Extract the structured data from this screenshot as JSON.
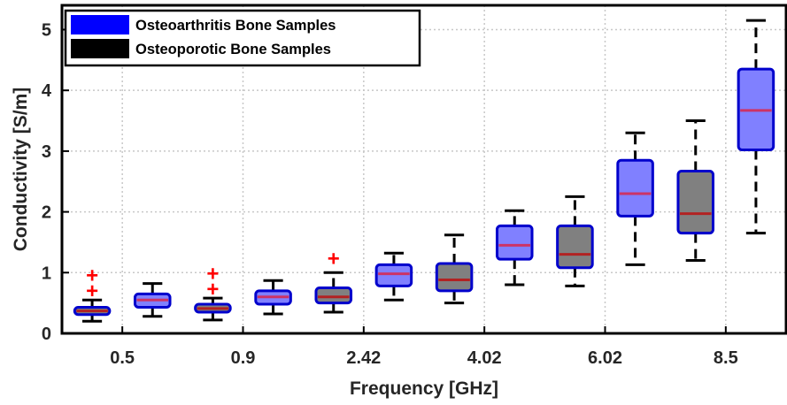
{
  "chart_data": {
    "type": "box",
    "title": "",
    "xlabel": "Frequency [GHz]",
    "ylabel": "Conductivity [S/m]",
    "ylim": [
      0,
      5.4
    ],
    "yticks": [
      0,
      1,
      2,
      3,
      4,
      5
    ],
    "grid": true,
    "legend_position": "top-left",
    "x_tick_labels": [
      "0.5",
      "0.9",
      "2.42",
      "4.02",
      "6.02",
      "8.5"
    ],
    "series": [
      {
        "name": "Osteoarthritis Bone Samples",
        "color": "#8080ff",
        "edge": "#0000cc",
        "median_color": "#cc3366"
      },
      {
        "name": "Osteoporotic Bone Samples",
        "color": "#808080",
        "edge": "#0000cc",
        "median_color": "#b22222"
      }
    ],
    "boxes": [
      {
        "series": 1,
        "whisker_low": 0.2,
        "q1": 0.31,
        "median": 0.37,
        "q3": 0.43,
        "whisker_high": 0.55,
        "outliers": [
          0.7,
          0.95
        ]
      },
      {
        "series": 0,
        "whisker_low": 0.28,
        "q1": 0.43,
        "median": 0.55,
        "q3": 0.65,
        "whisker_high": 0.82,
        "outliers": []
      },
      {
        "series": 1,
        "whisker_low": 0.22,
        "q1": 0.35,
        "median": 0.41,
        "q3": 0.48,
        "whisker_high": 0.58,
        "outliers": [
          0.73,
          0.98
        ]
      },
      {
        "series": 0,
        "whisker_low": 0.32,
        "q1": 0.48,
        "median": 0.6,
        "q3": 0.7,
        "whisker_high": 0.87,
        "outliers": []
      },
      {
        "series": 1,
        "whisker_low": 0.35,
        "q1": 0.5,
        "median": 0.6,
        "q3": 0.75,
        "whisker_high": 1.0,
        "outliers": [
          1.23
        ]
      },
      {
        "series": 0,
        "whisker_low": 0.55,
        "q1": 0.78,
        "median": 0.98,
        "q3": 1.13,
        "whisker_high": 1.32,
        "outliers": []
      },
      {
        "series": 1,
        "whisker_low": 0.5,
        "q1": 0.7,
        "median": 0.88,
        "q3": 1.15,
        "whisker_high": 1.62,
        "outliers": []
      },
      {
        "series": 0,
        "whisker_low": 0.8,
        "q1": 1.22,
        "median": 1.45,
        "q3": 1.77,
        "whisker_high": 2.02,
        "outliers": []
      },
      {
        "series": 1,
        "whisker_low": 0.78,
        "q1": 1.08,
        "median": 1.3,
        "q3": 1.77,
        "whisker_high": 2.25,
        "outliers": []
      },
      {
        "series": 0,
        "whisker_low": 1.13,
        "q1": 1.93,
        "median": 2.3,
        "q3": 2.85,
        "whisker_high": 3.3,
        "outliers": []
      },
      {
        "series": 1,
        "whisker_low": 1.2,
        "q1": 1.65,
        "median": 1.97,
        "q3": 2.67,
        "whisker_high": 3.5,
        "outliers": []
      },
      {
        "series": 0,
        "whisker_low": 1.65,
        "q1": 3.02,
        "median": 3.67,
        "q3": 4.35,
        "whisker_high": 5.15,
        "outliers": []
      }
    ]
  }
}
